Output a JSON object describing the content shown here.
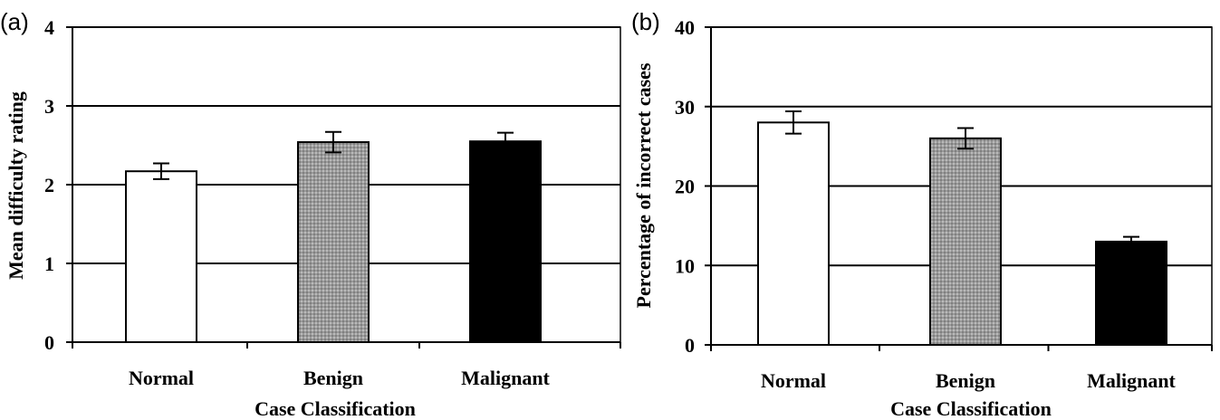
{
  "chart_data": [
    {
      "type": "bar",
      "panel_label": "(a)",
      "categories": [
        "Normal",
        "Benign",
        "Malignant"
      ],
      "values": [
        2.17,
        2.54,
        2.55
      ],
      "errors": [
        0.1,
        0.13,
        0.11
      ],
      "bar_styles": [
        "white",
        "gray-pattern",
        "black"
      ],
      "xlabel": "Case Classification",
      "ylabel": "Mean difficulty rating",
      "ylim": [
        0,
        4
      ],
      "yticks": [
        "0",
        "1",
        "2",
        "3",
        "4"
      ],
      "grid": true
    },
    {
      "type": "bar",
      "panel_label": "(b)",
      "categories": [
        "Normal",
        "Benign",
        "Malignant"
      ],
      "values": [
        28,
        26,
        13
      ],
      "errors": [
        1.4,
        1.3,
        0.6
      ],
      "bar_styles": [
        "white",
        "gray-pattern",
        "black"
      ],
      "xlabel": "Case Classification",
      "ylabel": "Percentage of incorrect cases",
      "ylim": [
        0,
        40
      ],
      "yticks": [
        "0",
        "10",
        "20",
        "30",
        "40"
      ],
      "grid": true
    }
  ]
}
